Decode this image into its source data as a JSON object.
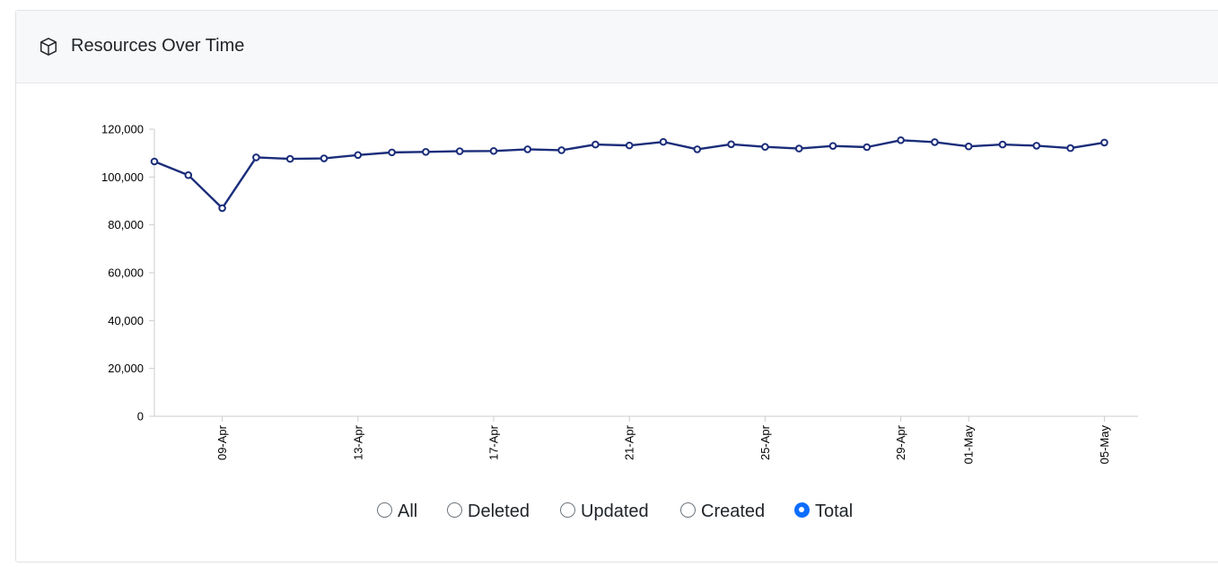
{
  "card": {
    "title": "Resources Over Time",
    "icon": "cube-icon"
  },
  "options": [
    {
      "label": "All",
      "checked": false
    },
    {
      "label": "Deleted",
      "checked": false
    },
    {
      "label": "Updated",
      "checked": false
    },
    {
      "label": "Created",
      "checked": false
    },
    {
      "label": "Total",
      "checked": true
    }
  ],
  "colors": {
    "line": "#1b2d7a",
    "axis": "#cccccc",
    "radio_accent": "#0d6efd"
  },
  "chart_data": {
    "type": "line",
    "title": "",
    "xlabel": "",
    "ylabel": "",
    "ylim": [
      0,
      120000
    ],
    "yticks": [
      "0",
      "20,000",
      "40,000",
      "60,000",
      "80,000",
      "100,000",
      "120,000"
    ],
    "xticks": [
      "09-Apr",
      "13-Apr",
      "17-Apr",
      "21-Apr",
      "25-Apr",
      "29-Apr",
      "01-May",
      "05-May"
    ],
    "x": [
      "2024-04-07",
      "2024-04-08",
      "2024-04-09",
      "2024-04-10",
      "2024-04-11",
      "2024-04-12",
      "2024-04-13",
      "2024-04-14",
      "2024-04-15",
      "2024-04-16",
      "2024-04-17",
      "2024-04-18",
      "2024-04-19",
      "2024-04-20",
      "2024-04-21",
      "2024-04-22",
      "2024-04-23",
      "2024-04-24",
      "2024-04-25",
      "2024-04-26",
      "2024-04-27",
      "2024-04-28",
      "2024-04-29",
      "2024-04-30",
      "2024-05-01",
      "2024-05-02",
      "2024-05-03",
      "2024-05-04",
      "2024-05-05"
    ],
    "series": [
      {
        "name": "Total",
        "values": [
          106500,
          100800,
          87000,
          108200,
          107600,
          107800,
          109200,
          110300,
          110500,
          110800,
          110900,
          111600,
          111200,
          113600,
          113200,
          114700,
          111600,
          113700,
          112600,
          111900,
          113000,
          112500,
          115400,
          114600,
          112800,
          113600,
          113100,
          112100,
          114400
        ]
      }
    ],
    "grid": false,
    "legend": "none"
  }
}
